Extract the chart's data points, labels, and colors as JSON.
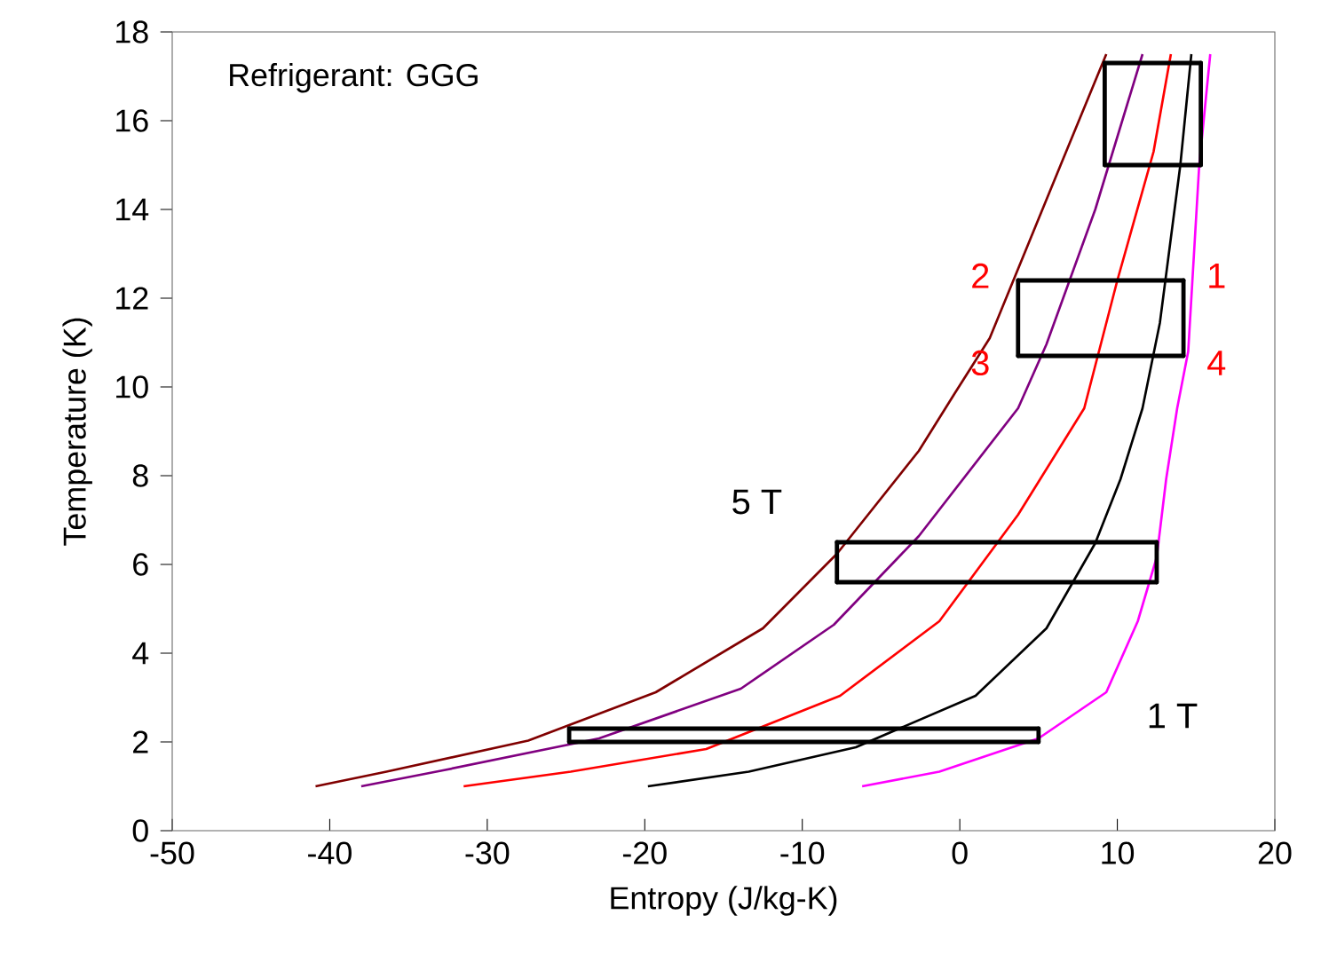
{
  "chart_data": {
    "type": "line",
    "xlabel": "Entropy (J/kg-K)",
    "ylabel": "Temperature (K)",
    "xlim": [
      -50,
      20
    ],
    "ylim": [
      0,
      18
    ],
    "xticks": [
      -50,
      -40,
      -30,
      -20,
      -10,
      0,
      10,
      20
    ],
    "yticks": [
      0,
      2,
      4,
      6,
      8,
      10,
      12,
      14,
      16,
      18
    ],
    "grid": false,
    "marker": "none",
    "line_style": "solid",
    "series": [
      {
        "color": "#800000",
        "x": [
          -40.9,
          -36.4,
          -27.4,
          -19.3,
          -12.5,
          -7.8,
          -2.6,
          -0.35,
          1.9,
          6.4,
          9.3
        ],
        "values": [
          1.0,
          1.33,
          2.03,
          3.12,
          4.56,
          6.24,
          8.56,
          9.84,
          11.1,
          15.0,
          17.5
        ]
      },
      {
        "color": "#800080",
        "x": [
          -38.0,
          -32.8,
          -22.9,
          -13.9,
          -8.0,
          -2.6,
          3.7,
          5.5,
          8.6,
          11.6
        ],
        "values": [
          1.0,
          1.36,
          2.08,
          3.2,
          4.64,
          6.64,
          9.52,
          10.96,
          14.0,
          17.5
        ]
      },
      {
        "color": "#ff0000",
        "x": [
          -31.5,
          -24.7,
          -16.1,
          -7.6,
          -1.3,
          3.7,
          7.9,
          10.0,
          12.3,
          13.4
        ],
        "values": [
          1.0,
          1.33,
          1.84,
          3.04,
          4.72,
          7.12,
          9.52,
          12.4,
          15.3,
          17.5
        ]
      },
      {
        "color": "#000000",
        "x": [
          -19.8,
          -13.4,
          -6.6,
          1.0,
          5.5,
          8.6,
          10.2,
          11.6,
          12.7,
          14.0,
          14.7
        ],
        "values": [
          1.0,
          1.33,
          1.88,
          3.04,
          4.56,
          6.48,
          7.92,
          9.52,
          11.44,
          15.0,
          17.5
        ]
      },
      {
        "color": "#ff00ff",
        "x": [
          -6.2,
          -1.3,
          5.0,
          9.3,
          11.3,
          12.5,
          13.1,
          13.8,
          14.5,
          15.2,
          15.9
        ],
        "values": [
          1.0,
          1.33,
          2.08,
          3.12,
          4.72,
          6.16,
          7.92,
          9.52,
          10.8,
          15.0,
          17.5
        ]
      },
      {
        "color": "#000000",
        "x": [
          9.2,
          15.3
        ],
        "values": [
          17.3,
          17.3
        ]
      },
      {
        "color": "#000000",
        "x": [
          9.2,
          15.3
        ],
        "values": [
          15.0,
          15.0
        ]
      },
      {
        "color": "#000000",
        "x": [
          3.7,
          14.2
        ],
        "values": [
          12.4,
          12.4
        ]
      },
      {
        "color": "#000000",
        "x": [
          3.7,
          14.2
        ],
        "values": [
          10.7,
          10.7
        ]
      },
      {
        "color": "#000000",
        "x": [
          -7.8,
          12.5
        ],
        "values": [
          6.5,
          6.5
        ]
      },
      {
        "color": "#000000",
        "x": [
          -7.8,
          12.5
        ],
        "values": [
          5.6,
          5.6
        ]
      },
      {
        "color": "#000000",
        "x": [
          -24.8,
          5.0
        ],
        "values": [
          2.3,
          2.3
        ]
      },
      {
        "color": "#000000",
        "x": [
          -24.8,
          5.0
        ],
        "values": [
          2.0,
          2.0
        ]
      },
      {
        "color": "#000000",
        "x": [
          9.2,
          9.2
        ],
        "values": [
          15.0,
          17.3
        ]
      },
      {
        "color": "#000000",
        "x": [
          15.3,
          15.3
        ],
        "values": [
          15.0,
          17.3
        ]
      },
      {
        "color": "#000000",
        "x": [
          3.7,
          3.7
        ],
        "values": [
          10.7,
          12.4
        ]
      },
      {
        "color": "#000000",
        "x": [
          14.2,
          14.2
        ],
        "values": [
          10.7,
          12.4
        ]
      },
      {
        "color": "#000000",
        "x": [
          -7.8,
          -7.8
        ],
        "values": [
          5.6,
          6.5
        ]
      },
      {
        "color": "#000000",
        "x": [
          12.5,
          12.5
        ],
        "values": [
          5.6,
          6.5
        ]
      },
      {
        "color": "#000000",
        "x": [
          -24.8,
          -24.8
        ],
        "values": [
          2.0,
          2.3
        ]
      },
      {
        "color": "#000000",
        "x": [
          5.0,
          5.0
        ],
        "values": [
          2.0,
          2.3
        ]
      }
    ],
    "annotations": [
      "Refrigerant: GGG",
      {
        "text": "1",
        "x": 14.2,
        "y": 12.4
      },
      {
        "text": "2",
        "x": 3.7,
        "y": 12.4
      },
      {
        "text": "3",
        "x": 3.7,
        "y": 10.7
      },
      {
        "text": "4",
        "x": 14.2,
        "y": 10.7
      },
      {
        "text": "5 T",
        "x": -7.8,
        "y": 6.24
      },
      {
        "text": "1 T",
        "x": 9.3,
        "y": 3.12
      }
    ]
  }
}
